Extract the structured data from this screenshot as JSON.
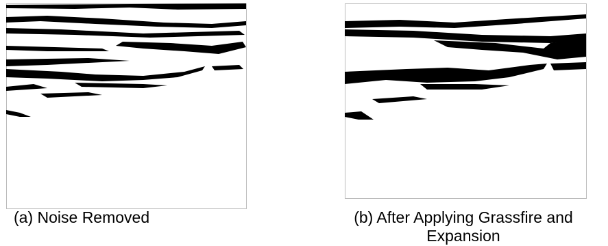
{
  "panels": [
    {
      "caption": "(a) Noise Removed"
    },
    {
      "caption_lines": [
        "(b) After Applying Grassfire and",
        "Expansion"
      ]
    }
  ]
}
